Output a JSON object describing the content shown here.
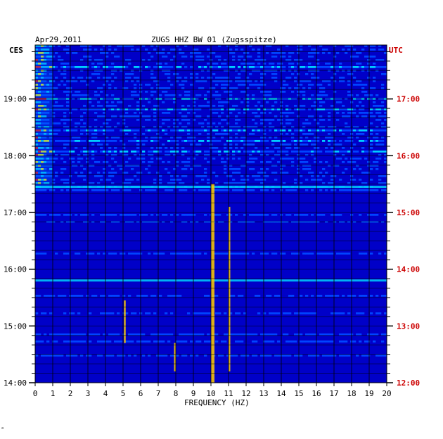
{
  "header": {
    "date": "Apr29,2011",
    "station": "ZUGS HHZ BW 01 (Zugsspitze)",
    "left_zone": "CES",
    "right_zone": "UTC"
  },
  "footer": {
    "corner_mark": "ᵃ"
  },
  "colors": {
    "background": "#0000c8",
    "left_axis_text": "#000000",
    "right_axis_text": "#cc0000",
    "grid": "#000000"
  },
  "chart_data": {
    "type": "heatmap",
    "title": "ZUGS HHZ BW 01 (Zugsspitze)",
    "xlabel": "FREQUENCY (HZ)",
    "xlim": [
      0,
      20
    ],
    "x_ticks": [
      "0",
      "1",
      "2",
      "3",
      "4",
      "5",
      "6",
      "7",
      "8",
      "9",
      "10",
      "11",
      "12",
      "13",
      "14",
      "15",
      "16",
      "17",
      "18",
      "19",
      "20"
    ],
    "left_ticks": [
      {
        "label": "14:00",
        "hour": 14
      },
      {
        "label": "15:00",
        "hour": 15
      },
      {
        "label": "16:00",
        "hour": 16
      },
      {
        "label": "17:00",
        "hour": 17
      },
      {
        "label": "18:00",
        "hour": 18
      },
      {
        "label": "19:00",
        "hour": 19
      }
    ],
    "right_ticks": [
      {
        "label": "12:00",
        "hour": 12
      },
      {
        "label": "13:00",
        "hour": 13
      },
      {
        "label": "14:00",
        "hour": 14
      },
      {
        "label": "15:00",
        "hour": 15
      },
      {
        "label": "16:00",
        "hour": 16
      },
      {
        "label": "17:00",
        "hour": 17
      }
    ],
    "time_range_ces": [
      14.0,
      19.95
    ],
    "time_range_utc": [
      12.0,
      17.95
    ],
    "colorscale": [
      "#0000c8",
      "#0044ff",
      "#00ccff",
      "#ffff00",
      "#ff0000"
    ],
    "features": [
      {
        "name": "low-frequency energy",
        "freq_hz": [
          0,
          1
        ],
        "time_ces": [
          17.4,
          19.95
        ]
      },
      {
        "name": "strong horizontal band",
        "freq_hz": [
          0,
          20
        ],
        "time_ces": [
          17.45,
          17.47
        ]
      },
      {
        "name": "horizontal band",
        "freq_hz": [
          0,
          20
        ],
        "time_ces": [
          15.8,
          15.82
        ]
      },
      {
        "name": "persistent line",
        "freq_hz": [
          10,
          10.2
        ],
        "time_ces": [
          14.0,
          17.5
        ]
      },
      {
        "name": "persistent line",
        "freq_hz": [
          11.0,
          11.1
        ],
        "time_ces": [
          14.2,
          17.1
        ]
      },
      {
        "name": "short line",
        "freq_hz": [
          5.05,
          5.15
        ],
        "time_ces": [
          14.7,
          15.45
        ]
      },
      {
        "name": "short line",
        "freq_hz": [
          7.9,
          8.0
        ],
        "time_ces": [
          14.2,
          14.7
        ]
      }
    ]
  }
}
